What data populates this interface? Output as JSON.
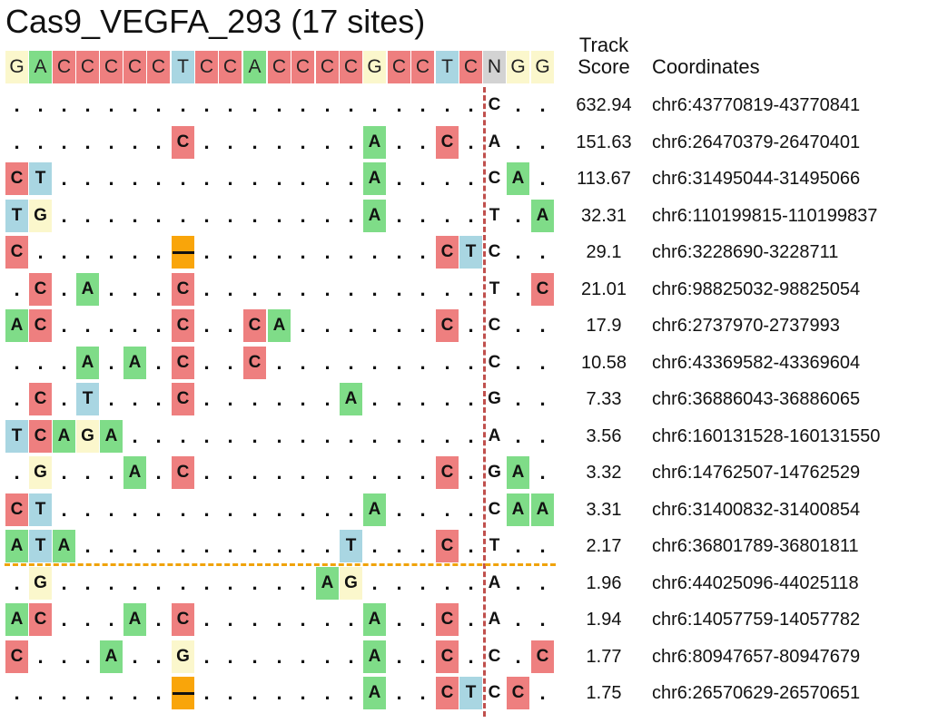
{
  "title": "Cas9_VEGFA_293 (17 sites)",
  "headers": {
    "score_line1": "Track",
    "score_line2": "Score",
    "coordinates": "Coordinates"
  },
  "colors": {
    "A": "#7fdc88",
    "C": "#ee7f7f",
    "G": "#fbf7cc",
    "T": "#a9d6e2",
    "N": "#d3d3d3",
    "gap": "#f9a50a",
    "pam_line": "#c0504d",
    "threshold_line": "#f0a30a"
  },
  "reference": [
    "G",
    "A",
    "C",
    "C",
    "C",
    "C",
    "C",
    "T",
    "C",
    "C",
    "A",
    "C",
    "C",
    "C",
    "C",
    "G",
    "C",
    "C",
    "T",
    "C",
    "N",
    "G",
    "G"
  ],
  "rows": [
    {
      "seq": [
        ".",
        ".",
        ".",
        ".",
        ".",
        ".",
        ".",
        ".",
        ".",
        ".",
        ".",
        ".",
        ".",
        ".",
        ".",
        ".",
        ".",
        ".",
        ".",
        ".",
        "C",
        ".",
        "."
      ],
      "score": "632.94",
      "coord": "chr6:43770819-43770841"
    },
    {
      "seq": [
        ".",
        ".",
        ".",
        ".",
        ".",
        ".",
        ".",
        "C",
        ".",
        ".",
        ".",
        ".",
        ".",
        ".",
        ".",
        "A",
        ".",
        ".",
        "C",
        ".",
        "A",
        ".",
        "."
      ],
      "score": "151.63",
      "coord": "chr6:26470379-26470401"
    },
    {
      "seq": [
        "C",
        "T",
        ".",
        ".",
        ".",
        ".",
        ".",
        ".",
        ".",
        ".",
        ".",
        ".",
        ".",
        ".",
        ".",
        "A",
        ".",
        ".",
        ".",
        ".",
        "C",
        "A",
        "."
      ],
      "score": "113.67",
      "coord": "chr6:31495044-31495066"
    },
    {
      "seq": [
        "T",
        "G",
        ".",
        ".",
        ".",
        ".",
        ".",
        ".",
        ".",
        ".",
        ".",
        ".",
        ".",
        ".",
        ".",
        "A",
        ".",
        ".",
        ".",
        ".",
        "T",
        ".",
        "A"
      ],
      "score": "32.31",
      "coord": "chr6:110199815-110199837"
    },
    {
      "seq": [
        "C",
        ".",
        ".",
        ".",
        ".",
        ".",
        ".",
        "-",
        ".",
        ".",
        ".",
        ".",
        ".",
        ".",
        ".",
        ".",
        ".",
        ".",
        "C",
        "T",
        "C",
        ".",
        "."
      ],
      "score": "29.1",
      "coord": "chr6:3228690-3228711"
    },
    {
      "seq": [
        ".",
        "C",
        ".",
        "A",
        ".",
        ".",
        ".",
        "C",
        ".",
        ".",
        ".",
        ".",
        ".",
        ".",
        ".",
        ".",
        ".",
        ".",
        ".",
        ".",
        "T",
        ".",
        "C"
      ],
      "score": "21.01",
      "coord": "chr6:98825032-98825054"
    },
    {
      "seq": [
        "A",
        "C",
        ".",
        ".",
        ".",
        ".",
        ".",
        "C",
        ".",
        ".",
        "C",
        "A",
        ".",
        ".",
        ".",
        ".",
        ".",
        ".",
        "C",
        ".",
        "C",
        ".",
        "."
      ],
      "score": "17.9",
      "coord": "chr6:2737970-2737993"
    },
    {
      "seq": [
        ".",
        ".",
        ".",
        "A",
        ".",
        "A",
        ".",
        "C",
        ".",
        ".",
        "C",
        ".",
        ".",
        ".",
        ".",
        ".",
        ".",
        ".",
        ".",
        ".",
        "C",
        ".",
        "."
      ],
      "score": "10.58",
      "coord": "chr6:43369582-43369604"
    },
    {
      "seq": [
        ".",
        "C",
        ".",
        "T",
        ".",
        ".",
        ".",
        "C",
        ".",
        ".",
        ".",
        ".",
        ".",
        ".",
        "A",
        ".",
        ".",
        ".",
        ".",
        ".",
        "G",
        ".",
        "."
      ],
      "score": "7.33",
      "coord": "chr6:36886043-36886065"
    },
    {
      "seq": [
        "T",
        "C",
        "A",
        "G",
        "A",
        ".",
        ".",
        ".",
        ".",
        ".",
        ".",
        ".",
        ".",
        ".",
        ".",
        ".",
        ".",
        ".",
        ".",
        ".",
        "A",
        ".",
        "."
      ],
      "score": "3.56",
      "coord": "chr6:160131528-160131550"
    },
    {
      "seq": [
        ".",
        "G",
        ".",
        ".",
        ".",
        "A",
        ".",
        "C",
        ".",
        ".",
        ".",
        ".",
        ".",
        ".",
        ".",
        ".",
        ".",
        ".",
        "C",
        ".",
        "G",
        "A",
        "."
      ],
      "score": "3.32",
      "coord": "chr6:14762507-14762529"
    },
    {
      "seq": [
        "C",
        "T",
        ".",
        ".",
        ".",
        ".",
        ".",
        ".",
        ".",
        ".",
        ".",
        ".",
        ".",
        ".",
        ".",
        "A",
        ".",
        ".",
        ".",
        ".",
        "C",
        "A",
        "A"
      ],
      "score": "3.31",
      "coord": "chr6:31400832-31400854"
    },
    {
      "seq": [
        "A",
        "T",
        "A",
        ".",
        ".",
        ".",
        ".",
        ".",
        ".",
        ".",
        ".",
        ".",
        ".",
        ".",
        "T",
        ".",
        ".",
        ".",
        "C",
        ".",
        "T",
        ".",
        "."
      ],
      "score": "2.17",
      "coord": "chr6:36801789-36801811"
    },
    {
      "seq": [
        ".",
        "G",
        ".",
        ".",
        ".",
        ".",
        ".",
        ".",
        ".",
        ".",
        ".",
        ".",
        ".",
        "A",
        "G",
        ".",
        ".",
        ".",
        ".",
        ".",
        "A",
        ".",
        "."
      ],
      "score": "1.96",
      "coord": "chr6:44025096-44025118"
    },
    {
      "seq": [
        "A",
        "C",
        ".",
        ".",
        ".",
        "A",
        ".",
        "C",
        ".",
        ".",
        ".",
        ".",
        ".",
        ".",
        ".",
        "A",
        ".",
        ".",
        "C",
        ".",
        "A",
        ".",
        "."
      ],
      "score": "1.94",
      "coord": "chr6:14057759-14057782"
    },
    {
      "seq": [
        "C",
        ".",
        ".",
        ".",
        "A",
        ".",
        ".",
        "G",
        ".",
        ".",
        ".",
        ".",
        ".",
        ".",
        ".",
        "A",
        ".",
        ".",
        "C",
        ".",
        "C",
        ".",
        "C"
      ],
      "score": "1.77",
      "coord": "chr6:80947657-80947679"
    },
    {
      "seq": [
        ".",
        ".",
        ".",
        ".",
        ".",
        ".",
        ".",
        "-",
        ".",
        ".",
        ".",
        ".",
        ".",
        ".",
        ".",
        "A",
        ".",
        ".",
        "C",
        "T",
        "C",
        "C",
        "."
      ],
      "score": "1.75",
      "coord": "chr6:26570629-26570651"
    }
  ]
}
